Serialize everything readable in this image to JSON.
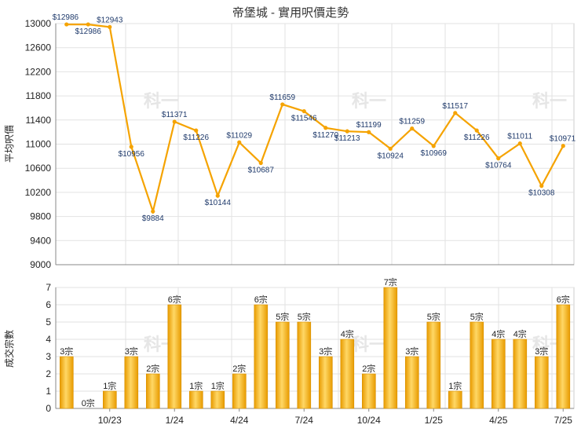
{
  "chart_data": [
    {
      "type": "line",
      "title": "帝堡城 - 實用呎價走勢",
      "ylabel": "平均呎價",
      "ylim": [
        9000,
        13000
      ],
      "yticks": [
        9000,
        9400,
        9800,
        10200,
        10600,
        11000,
        11400,
        11800,
        12200,
        12600,
        13000
      ],
      "x_tick_labels": [
        "10/23",
        "1/24",
        "4/24",
        "7/24",
        "10/24",
        "1/25",
        "4/25",
        "7/25"
      ],
      "values": [
        12986,
        12986,
        12943,
        10956,
        9884,
        11371,
        11226,
        10144,
        11029,
        10687,
        11659,
        11546,
        11270,
        11213,
        11199,
        10924,
        11259,
        10969,
        11517,
        11226,
        10764,
        11011,
        10308,
        10971
      ],
      "data_labels": [
        "$12986",
        "$12986",
        "$12943",
        "$10956",
        "$9884",
        "$11371",
        "$11226",
        "$10144",
        "$11029",
        "$10687",
        "$11659",
        "$11546",
        "$11270",
        "$11213",
        "$11199",
        "$10924",
        "$11259",
        "$10969",
        "$11517",
        "$11226",
        "$10764",
        "$11011",
        "$10308",
        "$10971"
      ],
      "grid": true,
      "colors": {
        "line": "#f5a300"
      }
    },
    {
      "type": "bar",
      "ylabel": "成交宗數",
      "ylim": [
        0,
        7
      ],
      "yticks": [
        0,
        1,
        2,
        3,
        4,
        5,
        6,
        7
      ],
      "x_tick_labels": [
        "10/23",
        "1/24",
        "4/24",
        "7/24",
        "10/24",
        "1/25",
        "4/25",
        "7/25"
      ],
      "values": [
        3,
        0,
        1,
        3,
        2,
        6,
        1,
        1,
        2,
        6,
        5,
        5,
        3,
        4,
        2,
        7,
        3,
        5,
        1,
        5,
        4,
        4,
        3,
        6
      ],
      "data_labels": [
        "3宗",
        "0宗",
        "1宗",
        "3宗",
        "2宗",
        "6宗",
        "1宗",
        "1宗",
        "2宗",
        "6宗",
        "5宗",
        "5宗",
        "3宗",
        "4宗",
        "2宗",
        "7宗",
        "3宗",
        "5宗",
        "1宗",
        "5宗",
        "4宗",
        "4宗",
        "3宗",
        "6宗"
      ],
      "grid": true,
      "colors": {
        "bar": "#f2b21a"
      }
    }
  ],
  "watermark": "科一"
}
